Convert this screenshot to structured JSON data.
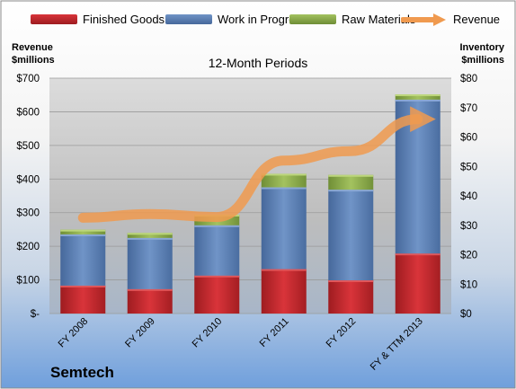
{
  "legend": {
    "finished": "Finished Goods",
    "wip": "Work in Progress",
    "raw": "Raw Materials",
    "revenue": "Revenue"
  },
  "axes": {
    "left_title_line1": "Revenue",
    "left_title_line2": "$millions",
    "right_title_line1": "Inventory",
    "right_title_line2": "$millions"
  },
  "subtitle": "12-Month Periods",
  "company": "Semtech",
  "colors": {
    "finished": "#c0262b",
    "wip": "#5b7fb6",
    "raw": "#8aaa4a",
    "revenue": "#f09a4f"
  },
  "chart_data": {
    "type": "bar",
    "stacked": true,
    "categories": [
      "FY 2008",
      "FY 2009",
      "FY 2010",
      "FY 2011",
      "FY 2012",
      "FY & TTM 2013"
    ],
    "series": [
      {
        "name": "Finished Goods",
        "axis": "right",
        "values": [
          9.5,
          8.3,
          12.9,
          15.1,
          11.3,
          20.4
        ]
      },
      {
        "name": "Work in Progress",
        "axis": "right",
        "values": [
          17.4,
          17.4,
          17.1,
          27.8,
          30.8,
          52.3
        ]
      },
      {
        "name": "Raw Materials",
        "axis": "right",
        "values": [
          1.6,
          1.7,
          3.6,
          4.6,
          5.0,
          1.8
        ]
      },
      {
        "name": "Revenue",
        "type": "line",
        "axis": "left",
        "values": [
          285,
          296,
          287,
          455,
          483,
          578
        ]
      }
    ],
    "y_left": {
      "label": "Revenue $millions",
      "ylim": [
        0,
        700
      ],
      "ticks": [
        "$-",
        "$100",
        "$200",
        "$300",
        "$400",
        "$500",
        "$600",
        "$700"
      ]
    },
    "y_right": {
      "label": "Inventory $millions",
      "ylim": [
        0,
        80
      ],
      "ticks": [
        "$0",
        "$10",
        "$20",
        "$30",
        "$40",
        "$50",
        "$60",
        "$70",
        "$80"
      ]
    },
    "grid": true,
    "legend": "top"
  }
}
